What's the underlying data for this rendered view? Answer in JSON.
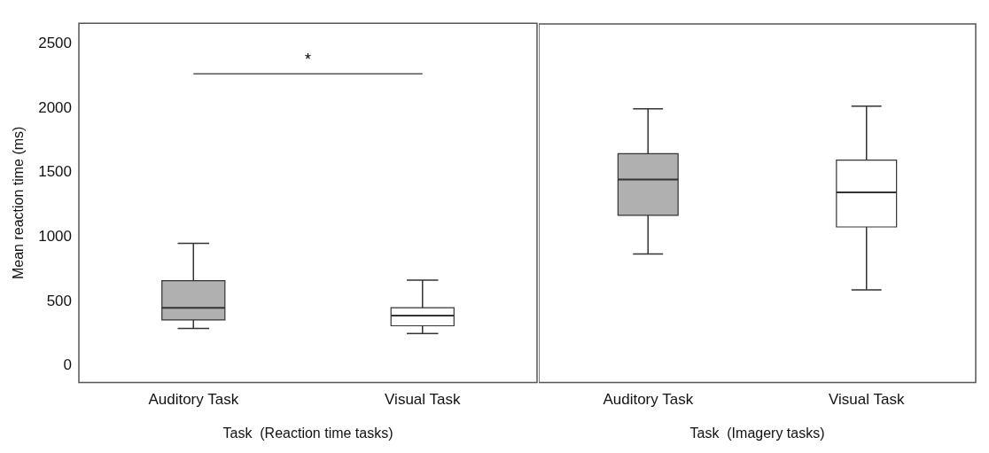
{
  "chart_data": [
    {
      "type": "box",
      "ylabel": "Mean reaction time (ms)",
      "xlabel": "Task  (Reaction time tasks)",
      "categories": [
        "Auditory Task",
        "Visual Task"
      ],
      "colors": [
        "#b0b0b0",
        "#ffffff"
      ],
      "boxes": [
        {
          "low": 290,
          "q1": 355,
          "median": 450,
          "q3": 660,
          "high": 950
        },
        {
          "low": 250,
          "q1": 310,
          "median": 390,
          "q3": 450,
          "high": 665
        }
      ],
      "ylim": [
        -130,
        2660
      ],
      "yticks": [
        0,
        500,
        1000,
        1500,
        2000,
        2500
      ],
      "grid": false,
      "annotations": [
        "*"
      ]
    },
    {
      "type": "box",
      "xlabel": "Task  (Imagery tasks)",
      "categories": [
        "Auditory Task",
        "Visual Task"
      ],
      "colors": [
        "#b0b0b0",
        "#ffffff"
      ],
      "boxes": [
        {
          "low": 870,
          "q1": 1170,
          "median": 1450,
          "q3": 1650,
          "high": 2000
        },
        {
          "low": 590,
          "q1": 1080,
          "median": 1350,
          "q3": 1600,
          "high": 2020
        }
      ],
      "ylim": [
        -130,
        2660
      ],
      "yticks": [
        0,
        500,
        1000,
        1500,
        2000,
        2500
      ],
      "grid": false,
      "tick_labels": "x"
    }
  ]
}
